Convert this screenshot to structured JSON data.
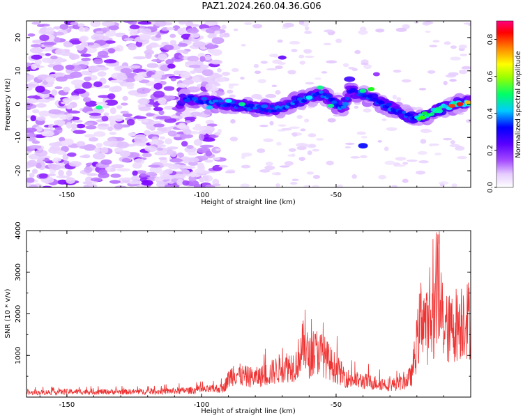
{
  "figure_title": "PAZ1.2024.260.04.36.G06",
  "chart_data": [
    {
      "type": "heatmap",
      "xlabel": "Height of straight line (km)",
      "ylabel": "Frequency (Hz)",
      "xlim": [
        -165,
        0
      ],
      "ylim": [
        -25,
        25
      ],
      "x_ticks": [
        -150,
        -100,
        -50
      ],
      "y_ticks": [
        -20,
        -10,
        0,
        10,
        20
      ],
      "colorbar": {
        "label": "Normalized spectral amplitude",
        "range": [
          0,
          0.9
        ],
        "ticks": [
          0.0,
          0.2,
          0.4,
          0.6,
          0.8
        ],
        "colormap": [
          "#ffffff",
          "#e6ccff",
          "#a64dff",
          "#7a00ff",
          "#0000ff",
          "#00ffff",
          "#00ff00",
          "#ffff00",
          "#ff8000",
          "#ff0000",
          "#ff0080"
        ]
      },
      "signal_trace": {
        "description_points_x": [
          -107,
          -100,
          -95,
          -90,
          -85,
          -80,
          -75,
          -70,
          -65,
          -60,
          -55,
          -50,
          -47,
          -45,
          -40,
          -35,
          -30,
          -25,
          -20,
          -15,
          -10,
          -5,
          0
        ],
        "description_points_y": [
          2,
          1,
          0.5,
          0,
          -0.5,
          -1,
          -1.5,
          -1,
          1,
          2,
          3,
          0,
          -1,
          4,
          3,
          1,
          -1,
          -3,
          -4,
          -3,
          -1,
          0,
          0.5
        ]
      }
    },
    {
      "type": "line",
      "xlabel": "Height of straight line (km)",
      "ylabel": "SNR (10 * v/v)",
      "xlim": [
        -165,
        0
      ],
      "ylim": [
        0,
        4000
      ],
      "x_ticks": [
        -150,
        -100,
        -50
      ],
      "y_ticks": [
        1000,
        2000,
        3000,
        4000
      ],
      "color": "#ee3333",
      "series_envelope": {
        "x": [
          -165,
          -150,
          -120,
          -100,
          -92,
          -90,
          -88,
          -85,
          -80,
          -75,
          -70,
          -65,
          -62,
          -60,
          -57,
          -55,
          -52,
          -50,
          -47,
          -45,
          -40,
          -35,
          -30,
          -25,
          -22,
          -20,
          -18,
          -16,
          -14,
          -12,
          -10,
          -8,
          -5,
          -2,
          0
        ],
        "y": [
          120,
          150,
          150,
          200,
          250,
          500,
          700,
          600,
          550,
          650,
          850,
          900,
          1500,
          1100,
          1300,
          1200,
          950,
          800,
          600,
          500,
          450,
          400,
          350,
          400,
          600,
          1500,
          2500,
          1900,
          2200,
          3000,
          2000,
          1900,
          2100,
          2300,
          2100
        ]
      }
    }
  ]
}
